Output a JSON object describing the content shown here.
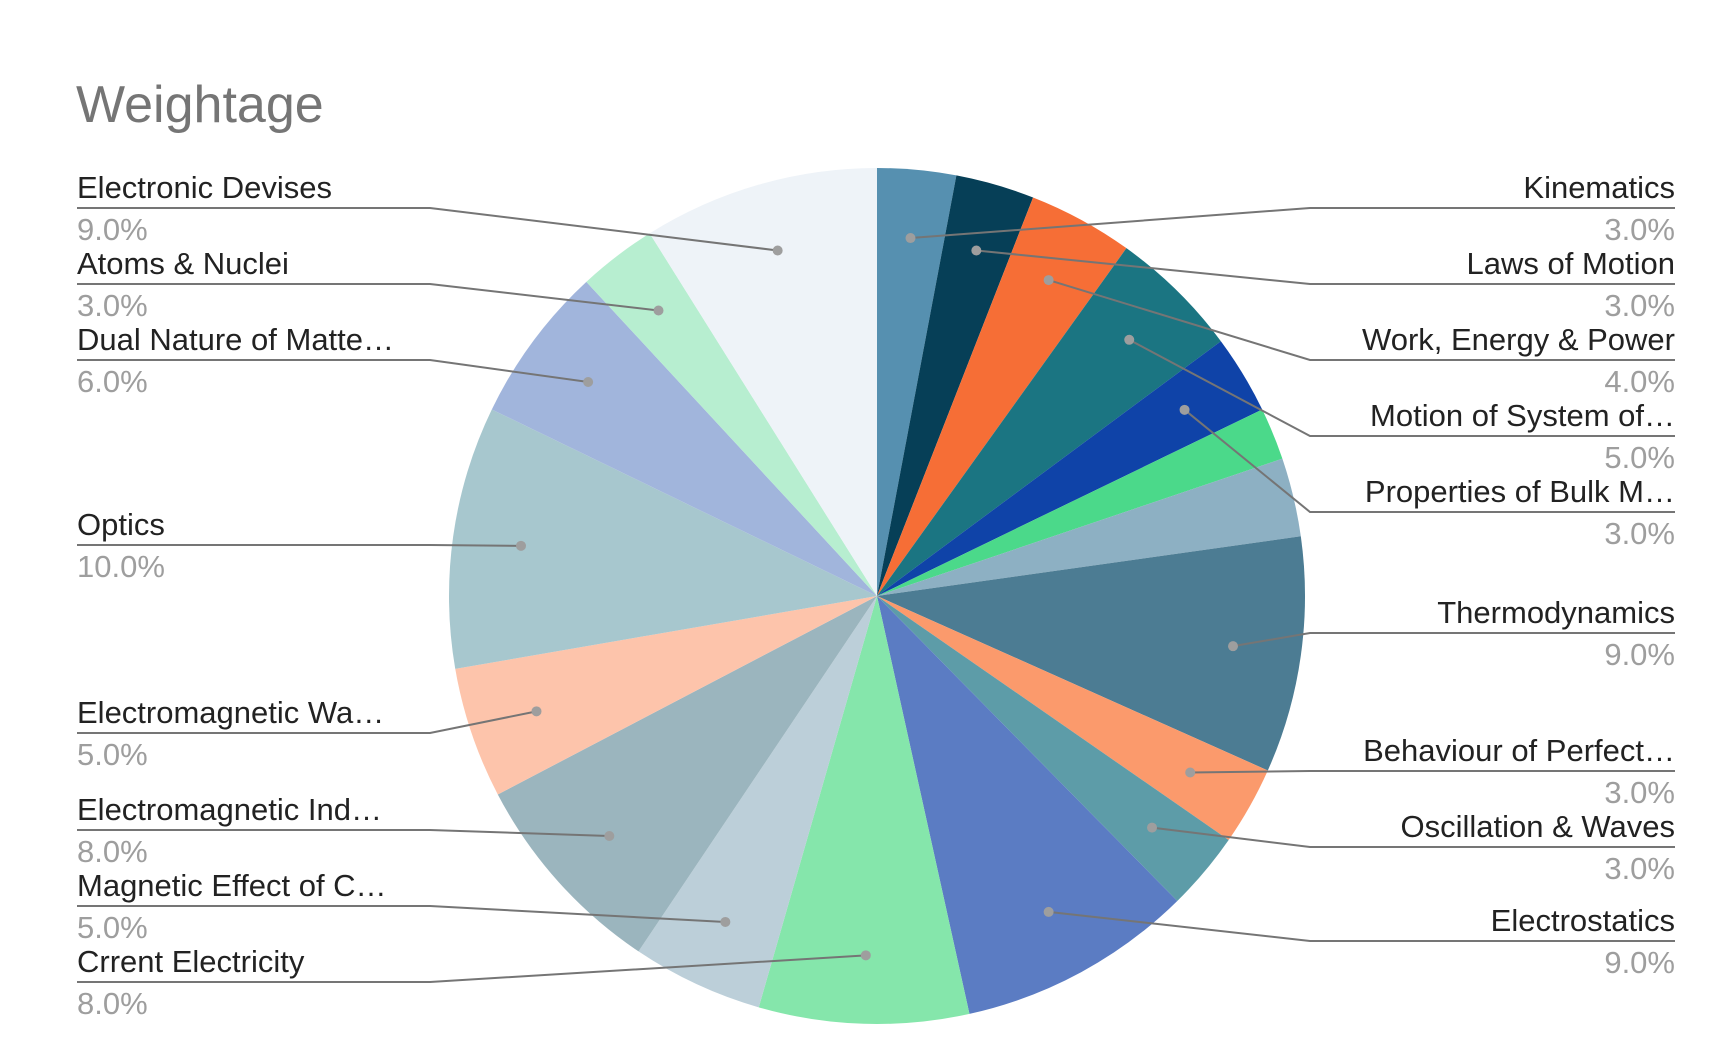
{
  "chart_data": {
    "type": "pie",
    "title": "Weightage",
    "start_angle_deg": 0,
    "direction": "clockwise",
    "legend": "none (callout labels beside pie)",
    "slices": [
      {
        "label": "Kinematics",
        "value": 3.0,
        "display": "3.0%",
        "color": "#5690b0",
        "side": "right"
      },
      {
        "label": "Laws of Motion",
        "value": 3.0,
        "display": "3.0%",
        "color": "#063f57",
        "side": "right"
      },
      {
        "label": "Work, Energy & Power",
        "value": 4.0,
        "display": "4.0%",
        "color": "#f66e36",
        "side": "right"
      },
      {
        "label": "Motion of System of…",
        "value": 5.0,
        "display": "5.0%",
        "color": "#1b7582",
        "side": "right"
      },
      {
        "label": "Properties of Bulk M…",
        "value": 3.0,
        "display": "3.0%",
        "color": "#0f43a8",
        "side": "right"
      },
      {
        "label": "",
        "value": 2.0,
        "display": "",
        "color": "#4bd98a",
        "side": "none"
      },
      {
        "label": "",
        "value": 3.0,
        "display": "",
        "color": "#8db0c3",
        "side": "none"
      },
      {
        "label": "Thermodynamics",
        "value": 9.0,
        "display": "9.0%",
        "color": "#4c7c93",
        "side": "right"
      },
      {
        "label": "Behaviour of Perfect…",
        "value": 3.0,
        "display": "3.0%",
        "color": "#fb9a6c",
        "side": "right"
      },
      {
        "label": "Oscillation & Waves",
        "value": 3.0,
        "display": "3.0%",
        "color": "#5d9ca8",
        "side": "right"
      },
      {
        "label": "Electrostatics",
        "value": 9.0,
        "display": "9.0%",
        "color": "#5b7cc3",
        "side": "right"
      },
      {
        "label": "Crrent Electricity",
        "value": 8.0,
        "display": "8.0%",
        "color": "#85e6ab",
        "side": "left"
      },
      {
        "label": "Magnetic Effect of C…",
        "value": 5.0,
        "display": "5.0%",
        "color": "#bccfd9",
        "side": "left"
      },
      {
        "label": "Electromagnetic Ind…",
        "value": 8.0,
        "display": "8.0%",
        "color": "#9bb5be",
        "side": "left"
      },
      {
        "label": "Electromagnetic Wa…",
        "value": 5.0,
        "display": "5.0%",
        "color": "#fdc4ab",
        "side": "left"
      },
      {
        "label": "Optics",
        "value": 10.0,
        "display": "10.0%",
        "color": "#a7c7ce",
        "side": "left"
      },
      {
        "label": "Dual Nature of Matte…",
        "value": 6.0,
        "display": "6.0%",
        "color": "#a1b5dc",
        "side": "left"
      },
      {
        "label": "Atoms & Nuclei",
        "value": 3.0,
        "display": "3.0%",
        "color": "#b7eed0",
        "side": "left"
      },
      {
        "label": "Electronic Devises",
        "value": 9.0,
        "display": "9.0%",
        "color": "#eef3f8",
        "side": "left"
      }
    ]
  }
}
